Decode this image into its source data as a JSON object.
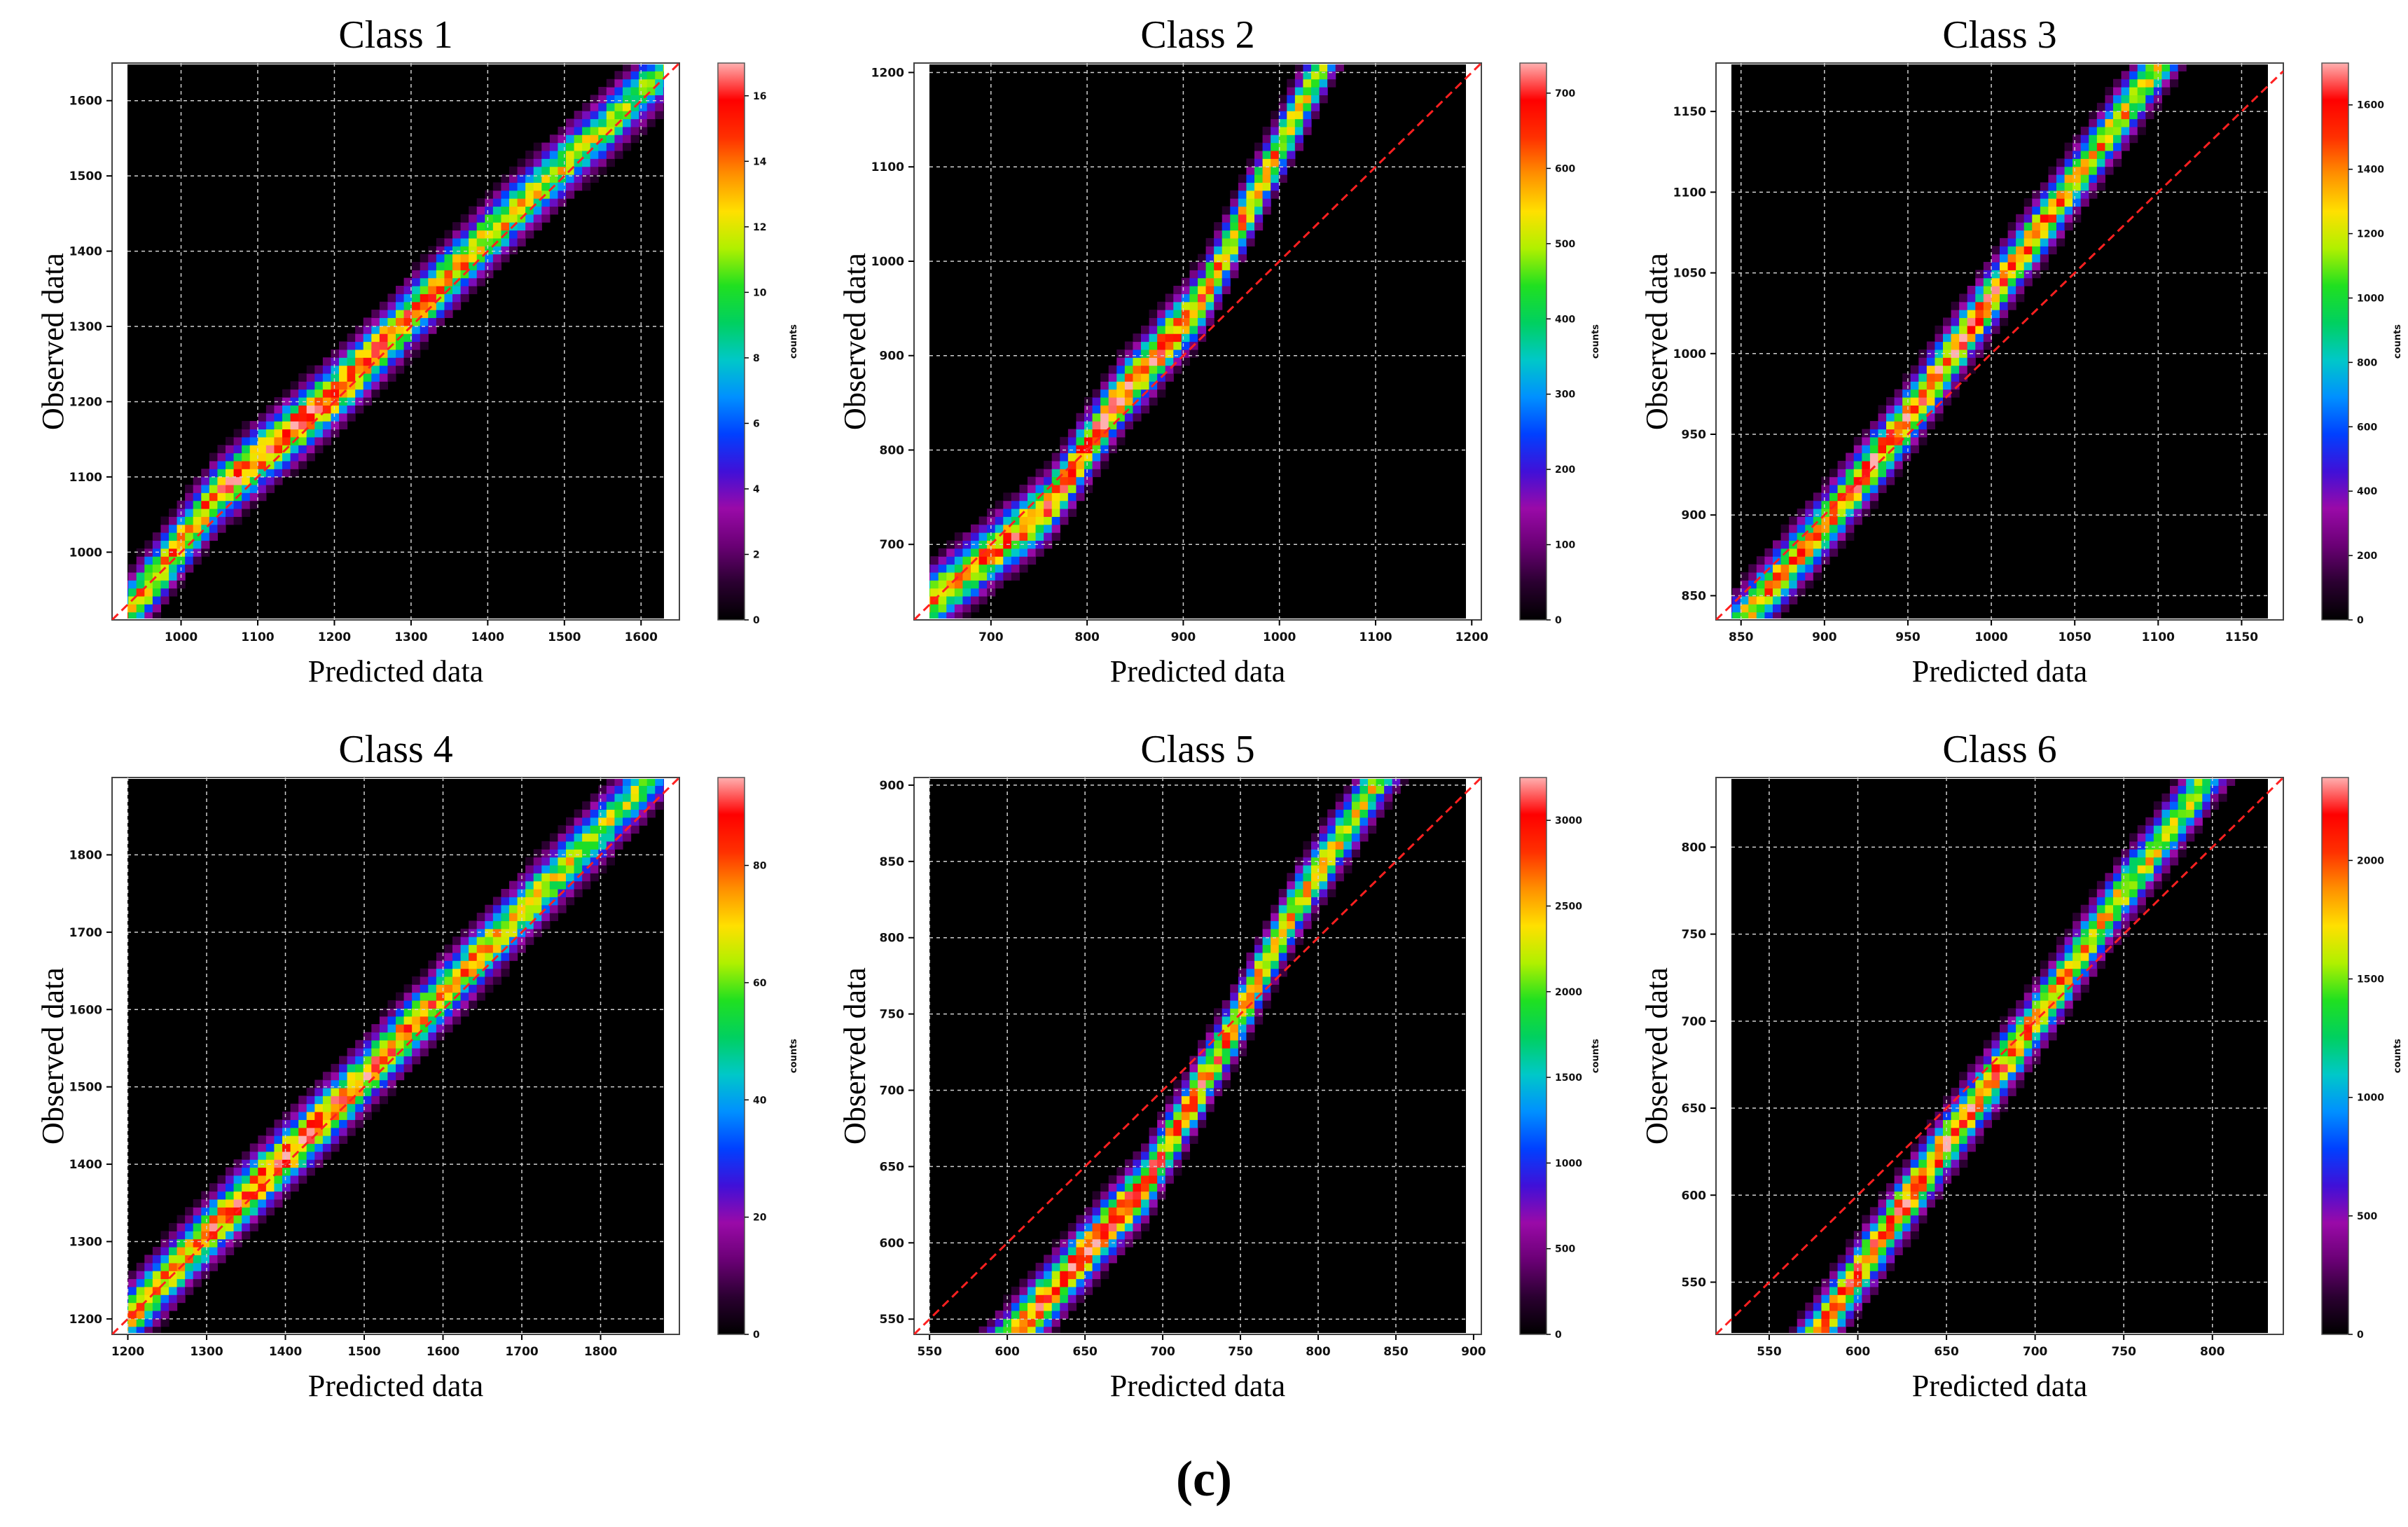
{
  "figure_label": "(c)",
  "colors": {
    "background": "#000000",
    "grid": "#d0d0d0",
    "diagonal": "#ff2020",
    "colormap": [
      "#000000",
      "#2a0030",
      "#6a0075",
      "#9a0aa8",
      "#4010d8",
      "#0040ff",
      "#0090ff",
      "#00c8c8",
      "#00d060",
      "#20e020",
      "#b0f000",
      "#ffe000",
      "#ff9000",
      "#ff3000",
      "#ff0000",
      "#ffb0b0"
    ]
  },
  "chart_data": [
    {
      "type": "heatmap",
      "title": "Class 1",
      "xlabel": "Predicted data",
      "ylabel": "Observed data",
      "xlim": [
        910,
        1650
      ],
      "ylim": [
        910,
        1650
      ],
      "xticks": [
        1000,
        1100,
        1200,
        1300,
        1400,
        1500,
        1600
      ],
      "yticks": [
        1000,
        1100,
        1200,
        1300,
        1400,
        1500,
        1600
      ],
      "colorbar": {
        "label": "counts",
        "min": 0,
        "max": 17,
        "ticks": [
          0,
          2,
          4,
          6,
          8,
          10,
          12,
          14,
          16
        ]
      },
      "density_ridge": [
        [
          930,
          920
        ],
        [
          1050,
          1080
        ],
        [
          1200,
          1210
        ],
        [
          1400,
          1420
        ],
        [
          1620,
          1630
        ]
      ],
      "peak_count": 16
    },
    {
      "type": "heatmap",
      "title": "Class 2",
      "xlabel": "Predicted data",
      "ylabel": "Observed data",
      "xlim": [
        620,
        1210
      ],
      "ylim": [
        620,
        1210
      ],
      "xticks": [
        700,
        800,
        900,
        1000,
        1100,
        1200
      ],
      "yticks": [
        700,
        800,
        900,
        1000,
        1100,
        1200
      ],
      "colorbar": {
        "label": "counts",
        "min": 0,
        "max": 740,
        "ticks": [
          0,
          100,
          200,
          300,
          400,
          500,
          600,
          700
        ]
      },
      "density_ridge": [
        [
          650,
          650
        ],
        [
          760,
          740
        ],
        [
          830,
          850
        ],
        [
          920,
          960
        ],
        [
          990,
          1100
        ]
      ],
      "peak_count": 720
    },
    {
      "type": "heatmap",
      "title": "Class 3",
      "xlabel": "Predicted data",
      "ylabel": "Observed data",
      "xlim": [
        835,
        1175
      ],
      "ylim": [
        835,
        1180
      ],
      "xticks": [
        850,
        900,
        950,
        1000,
        1050,
        1100,
        1150
      ],
      "yticks": [
        850,
        900,
        950,
        1000,
        1050,
        1100,
        1150
      ],
      "colorbar": {
        "label": "counts",
        "min": 0,
        "max": 1730,
        "ticks": [
          0,
          200,
          400,
          600,
          800,
          1000,
          1200,
          1400,
          1600
        ]
      },
      "density_ridge": [
        [
          855,
          840
        ],
        [
          905,
          900
        ],
        [
          950,
          960
        ],
        [
          1010,
          1050
        ],
        [
          1080,
          1150
        ]
      ],
      "peak_count": 1700
    },
    {
      "type": "heatmap",
      "title": "Class 4",
      "xlabel": "Predicted data",
      "ylabel": "Observed data",
      "xlim": [
        1180,
        1900
      ],
      "ylim": [
        1180,
        1900
      ],
      "xticks": [
        1200,
        1300,
        1400,
        1500,
        1600,
        1700,
        1800
      ],
      "yticks": [
        1200,
        1300,
        1400,
        1500,
        1600,
        1700,
        1800
      ],
      "colorbar": {
        "label": "counts",
        "min": 0,
        "max": 95,
        "ticks": [
          0,
          20,
          40,
          60,
          80
        ]
      },
      "density_ridge": [
        [
          1190,
          1190
        ],
        [
          1300,
          1310
        ],
        [
          1450,
          1460
        ],
        [
          1600,
          1620
        ],
        [
          1760,
          1790
        ]
      ],
      "peak_count": 90
    },
    {
      "type": "heatmap",
      "title": "Class 5",
      "xlabel": "Predicted data",
      "ylabel": "Observed data",
      "xlim": [
        540,
        905
      ],
      "ylim": [
        540,
        905
      ],
      "xticks": [
        550,
        600,
        650,
        700,
        750,
        800,
        850,
        900
      ],
      "yticks": [
        550,
        600,
        650,
        700,
        750,
        800,
        850,
        900
      ],
      "colorbar": {
        "label": "counts",
        "min": 0,
        "max": 3250,
        "ticks": [
          0,
          500,
          1000,
          1500,
          2000,
          2500,
          3000
        ]
      },
      "density_ridge": [
        [
          630,
          570
        ],
        [
          690,
          640
        ],
        [
          745,
          740
        ],
        [
          785,
          820
        ],
        [
          830,
          890
        ]
      ],
      "peak_count": 3200
    },
    {
      "type": "heatmap",
      "title": "Class 6",
      "xlabel": "Predicted data",
      "ylabel": "Observed data",
      "xlim": [
        520,
        840
      ],
      "ylim": [
        520,
        840
      ],
      "xticks": [
        550,
        600,
        650,
        700,
        750,
        800
      ],
      "yticks": [
        550,
        600,
        650,
        700,
        750,
        800
      ],
      "colorbar": {
        "label": "counts",
        "min": 0,
        "max": 2350,
        "ticks": [
          0,
          500,
          1000,
          1500,
          2000
        ]
      },
      "density_ridge": [
        [
          600,
          555
        ],
        [
          650,
          630
        ],
        [
          700,
          700
        ],
        [
          740,
          760
        ],
        [
          790,
          830
        ]
      ],
      "peak_count": 2300
    }
  ]
}
